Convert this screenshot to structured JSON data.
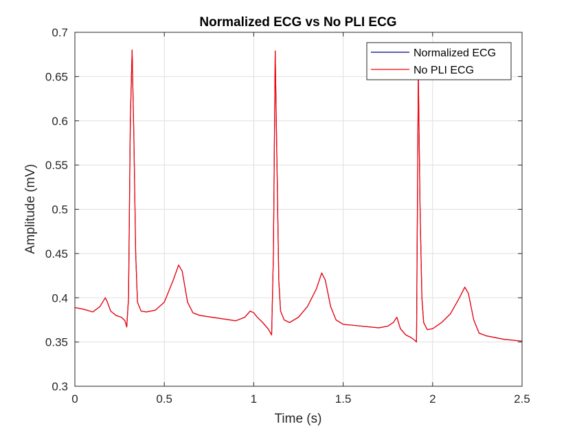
{
  "chart_data": {
    "type": "line",
    "title": "Normalized ECG vs No PLI ECG",
    "xlabel": "Time (s)",
    "ylabel": "Amplitude (mV)",
    "xlim": [
      0,
      2.5
    ],
    "ylim": [
      0.3,
      0.7
    ],
    "xticks": [
      0,
      0.5,
      1,
      1.5,
      2,
      2.5
    ],
    "xtick_labels": [
      "0",
      "0.5",
      "1",
      "1.5",
      "2",
      "2.5"
    ],
    "yticks": [
      0.3,
      0.35,
      0.4,
      0.45,
      0.5,
      0.55,
      0.6,
      0.65,
      0.7
    ],
    "ytick_labels": [
      "0.3",
      "0.35",
      "0.4",
      "0.45",
      "0.5",
      "0.55",
      "0.6",
      "0.65",
      "0.7"
    ],
    "grid": true,
    "legend_position": "top-right",
    "series": [
      {
        "name": "Normalized ECG",
        "color": "#000080",
        "x": [
          0,
          0.05,
          0.1,
          0.14,
          0.17,
          0.18,
          0.2,
          0.23,
          0.26,
          0.28,
          0.29,
          0.3,
          0.31,
          0.32,
          0.33,
          0.34,
          0.35,
          0.37,
          0.4,
          0.45,
          0.5,
          0.55,
          0.58,
          0.6,
          0.63,
          0.66,
          0.7,
          0.8,
          0.9,
          0.95,
          0.98,
          1.0,
          1.02,
          1.05,
          1.08,
          1.1,
          1.11,
          1.12,
          1.13,
          1.14,
          1.15,
          1.17,
          1.2,
          1.25,
          1.3,
          1.35,
          1.38,
          1.4,
          1.43,
          1.46,
          1.5,
          1.6,
          1.7,
          1.75,
          1.78,
          1.8,
          1.82,
          1.85,
          1.88,
          1.9,
          1.91,
          1.92,
          1.93,
          1.94,
          1.95,
          1.97,
          2.0,
          2.05,
          2.1,
          2.15,
          2.18,
          2.2,
          2.23,
          2.26,
          2.3,
          2.4,
          2.5
        ],
        "y": [
          0.389,
          0.387,
          0.384,
          0.39,
          0.4,
          0.396,
          0.385,
          0.38,
          0.378,
          0.374,
          0.367,
          0.4,
          0.6,
          0.68,
          0.58,
          0.45,
          0.395,
          0.385,
          0.384,
          0.386,
          0.395,
          0.42,
          0.437,
          0.43,
          0.395,
          0.383,
          0.38,
          0.377,
          0.374,
          0.378,
          0.385,
          0.383,
          0.378,
          0.372,
          0.365,
          0.358,
          0.45,
          0.679,
          0.55,
          0.42,
          0.385,
          0.375,
          0.372,
          0.378,
          0.39,
          0.41,
          0.428,
          0.42,
          0.39,
          0.375,
          0.37,
          0.368,
          0.366,
          0.368,
          0.372,
          0.378,
          0.365,
          0.358,
          0.355,
          0.352,
          0.35,
          0.655,
          0.5,
          0.4,
          0.372,
          0.364,
          0.365,
          0.372,
          0.382,
          0.4,
          0.412,
          0.405,
          0.375,
          0.36,
          0.357,
          0.353,
          0.351
        ]
      },
      {
        "name": "No PLI ECG",
        "color": "#ff0000",
        "x": [
          0,
          0.05,
          0.1,
          0.14,
          0.17,
          0.18,
          0.2,
          0.23,
          0.26,
          0.28,
          0.29,
          0.3,
          0.31,
          0.32,
          0.33,
          0.34,
          0.35,
          0.37,
          0.4,
          0.45,
          0.5,
          0.55,
          0.58,
          0.6,
          0.63,
          0.66,
          0.7,
          0.8,
          0.9,
          0.95,
          0.98,
          1.0,
          1.02,
          1.05,
          1.08,
          1.1,
          1.11,
          1.12,
          1.13,
          1.14,
          1.15,
          1.17,
          1.2,
          1.25,
          1.3,
          1.35,
          1.38,
          1.4,
          1.43,
          1.46,
          1.5,
          1.6,
          1.7,
          1.75,
          1.78,
          1.8,
          1.82,
          1.85,
          1.88,
          1.9,
          1.91,
          1.92,
          1.93,
          1.94,
          1.95,
          1.97,
          2.0,
          2.05,
          2.1,
          2.15,
          2.18,
          2.2,
          2.23,
          2.26,
          2.3,
          2.4,
          2.5
        ],
        "y": [
          0.389,
          0.387,
          0.384,
          0.39,
          0.4,
          0.396,
          0.385,
          0.38,
          0.378,
          0.374,
          0.367,
          0.4,
          0.6,
          0.68,
          0.58,
          0.45,
          0.395,
          0.385,
          0.384,
          0.386,
          0.395,
          0.42,
          0.437,
          0.43,
          0.395,
          0.383,
          0.38,
          0.377,
          0.374,
          0.378,
          0.385,
          0.383,
          0.378,
          0.372,
          0.365,
          0.358,
          0.45,
          0.679,
          0.55,
          0.42,
          0.385,
          0.375,
          0.372,
          0.378,
          0.39,
          0.41,
          0.428,
          0.42,
          0.39,
          0.375,
          0.37,
          0.368,
          0.366,
          0.368,
          0.372,
          0.378,
          0.365,
          0.358,
          0.355,
          0.352,
          0.35,
          0.655,
          0.5,
          0.4,
          0.372,
          0.364,
          0.365,
          0.372,
          0.382,
          0.4,
          0.412,
          0.405,
          0.375,
          0.36,
          0.357,
          0.353,
          0.351
        ]
      }
    ]
  }
}
